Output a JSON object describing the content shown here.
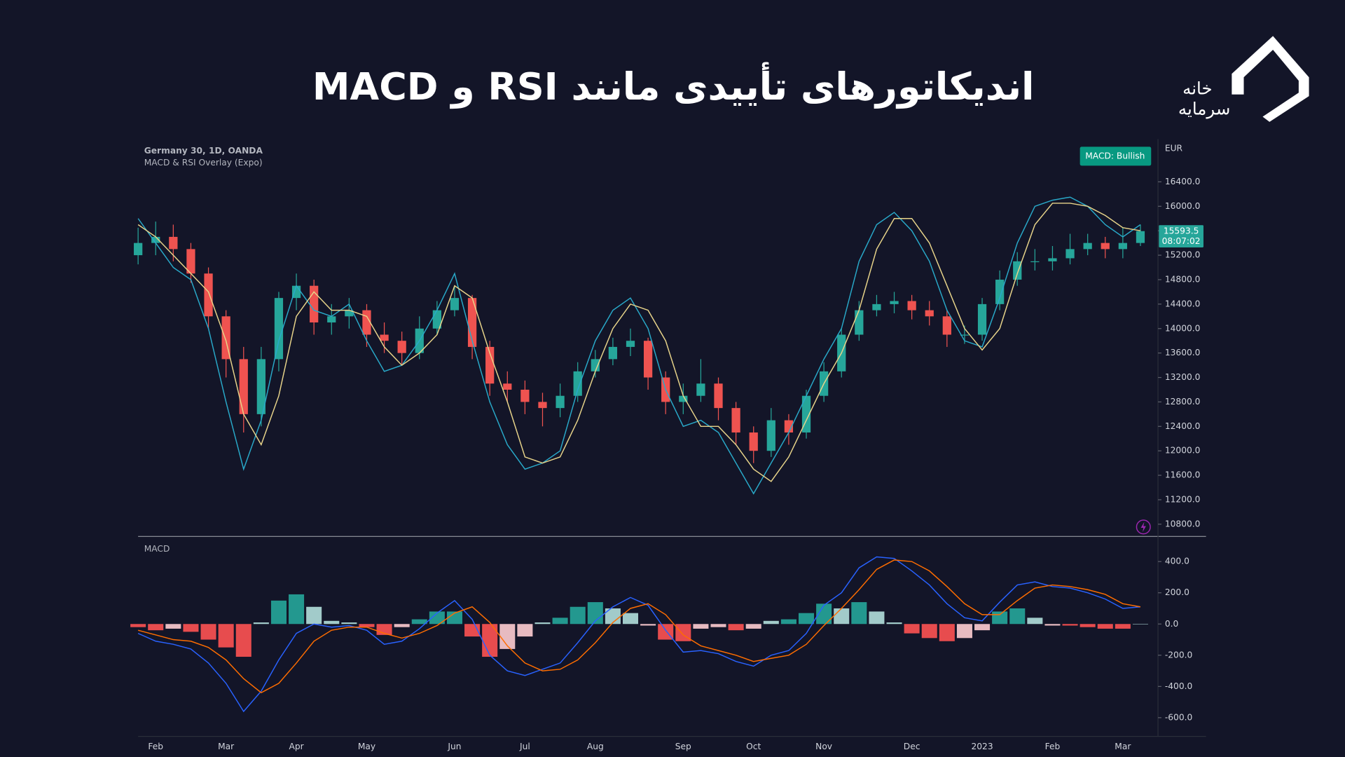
{
  "header": {
    "title": "اندیکاتورهای تأییدی مانند RSI و MACD",
    "logo_top": "خانه",
    "logo_bottom": "سرمایه"
  },
  "chart_data": [
    {
      "type": "candlestick",
      "title": "Germany 30, 1D, OANDA",
      "subtitle": "MACD & RSI Overlay (Expo)",
      "badge": "MACD: Bullish",
      "axis_label": "EUR",
      "last_price": 15593.5,
      "countdown": "08:07:02",
      "up_color": "#26a69a",
      "down_color": "#ef5350",
      "categories": [
        null,
        "Feb",
        null,
        null,
        null,
        "Mar",
        null,
        null,
        null,
        "Apr",
        null,
        null,
        null,
        "May",
        null,
        null,
        null,
        null,
        "Jun",
        null,
        null,
        null,
        "Jul",
        null,
        null,
        null,
        "Aug",
        null,
        null,
        null,
        null,
        "Sep",
        null,
        null,
        null,
        "Oct",
        null,
        null,
        null,
        "Nov",
        null,
        null,
        null,
        null,
        "Dec",
        null,
        null,
        null,
        "2023",
        null,
        null,
        null,
        "Feb",
        null,
        null,
        null,
        "Mar",
        null
      ],
      "open": [
        15200,
        15400,
        15500,
        15300,
        14900,
        14200,
        13500,
        12600,
        13500,
        14500,
        14700,
        14100,
        14200,
        14300,
        13900,
        13800,
        13600,
        14000,
        14300,
        14500,
        13700,
        13100,
        13000,
        12800,
        12700,
        12900,
        13300,
        13500,
        13700,
        13800,
        13200,
        12800,
        12900,
        13100,
        12700,
        12300,
        12000,
        12500,
        12300,
        12900,
        13300,
        13900,
        14300,
        14400,
        14450,
        14300,
        14200,
        13900,
        13900,
        14400,
        14800,
        15100,
        15100,
        15150,
        15300,
        15400,
        15300,
        15400
      ],
      "high": [
        15650,
        15750,
        15700,
        15400,
        15000,
        14300,
        13700,
        13700,
        14600,
        14900,
        14800,
        14400,
        14500,
        14400,
        14100,
        13950,
        14200,
        14450,
        14700,
        14550,
        13800,
        13300,
        13150,
        12950,
        13100,
        13450,
        13650,
        13850,
        14000,
        13850,
        13300,
        13100,
        13500,
        13200,
        12800,
        12400,
        12700,
        12600,
        13000,
        13450,
        14000,
        14450,
        14550,
        14600,
        14550,
        14450,
        14300,
        14050,
        14500,
        14950,
        15250,
        15300,
        15350,
        15550,
        15550,
        15500,
        15650,
        15700
      ],
      "low": [
        15050,
        15200,
        15100,
        14750,
        14000,
        13200,
        12300,
        12400,
        13300,
        14300,
        13900,
        13900,
        14000,
        13700,
        13600,
        13400,
        13500,
        13900,
        14200,
        13500,
        12900,
        12800,
        12600,
        12400,
        12550,
        12800,
        13200,
        13400,
        13550,
        13000,
        12600,
        12600,
        12800,
        12500,
        12100,
        11800,
        11900,
        12100,
        12200,
        12800,
        13200,
        13800,
        14200,
        14250,
        14150,
        14050,
        13700,
        13750,
        13800,
        14300,
        14700,
        14950,
        14950,
        15050,
        15200,
        15150,
        15150,
        15350
      ],
      "close": [
        15400,
        15500,
        15300,
        14900,
        14200,
        13500,
        12600,
        13500,
        14500,
        14700,
        14100,
        14200,
        14300,
        13900,
        13800,
        13600,
        14000,
        14300,
        14500,
        13700,
        13100,
        13000,
        12800,
        12700,
        12900,
        13300,
        13500,
        13700,
        13800,
        13200,
        12800,
        12900,
        13100,
        12700,
        12300,
        12000,
        12500,
        12300,
        12900,
        13300,
        13900,
        14300,
        14400,
        14450,
        14300,
        14200,
        13900,
        13900,
        14400,
        14800,
        15100,
        15100,
        15150,
        15300,
        15400,
        15300,
        15400,
        15594
      ],
      "series": [
        {
          "color": "#29a9c9",
          "values": [
            15800,
            15400,
            15000,
            14800,
            14000,
            12800,
            11700,
            12500,
            13800,
            14700,
            14300,
            14200,
            14400,
            13800,
            13300,
            13400,
            13800,
            14300,
            14900,
            13800,
            12800,
            12100,
            11700,
            11800,
            12000,
            13000,
            13800,
            14300,
            14500,
            14000,
            13000,
            12400,
            12500,
            12300,
            11800,
            11300,
            11800,
            12300,
            12900,
            13500,
            14000,
            15100,
            15700,
            15900,
            15600,
            15100,
            14300,
            13800,
            13700,
            14500,
            15400,
            16000,
            16100,
            16150,
            16000,
            15700,
            15500,
            15700
          ]
        },
        {
          "color": "#e8d48a",
          "values": [
            15700,
            15500,
            15200,
            14900,
            14600,
            13800,
            12600,
            12100,
            12900,
            14200,
            14600,
            14300,
            14300,
            14200,
            13700,
            13400,
            13600,
            13900,
            14700,
            14500,
            13600,
            12800,
            11900,
            11800,
            11900,
            12500,
            13300,
            14000,
            14400,
            14300,
            13800,
            12900,
            12400,
            12400,
            12100,
            11700,
            11500,
            11900,
            12500,
            13100,
            13600,
            14300,
            15300,
            15800,
            15800,
            15400,
            14700,
            14000,
            13650,
            14000,
            14900,
            15700,
            16050,
            16050,
            16000,
            15850,
            15650,
            15600
          ]
        }
      ],
      "ylim": [
        10600,
        17100
      ],
      "yticks": [
        {
          "value": 10800,
          "label": "10800.0"
        },
        {
          "value": 11200,
          "label": "11200.0"
        },
        {
          "value": 11600,
          "label": "11600.0"
        },
        {
          "value": 12000,
          "label": "12000.0"
        },
        {
          "value": 12400,
          "label": "12400.0"
        },
        {
          "value": 12800,
          "label": "12800.0"
        },
        {
          "value": 13200,
          "label": "13200.0"
        },
        {
          "value": 13600,
          "label": "13600.0"
        },
        {
          "value": 14000,
          "label": "14000.0"
        },
        {
          "value": 14400,
          "label": "14400.0"
        },
        {
          "value": 14800,
          "label": "14800.0"
        },
        {
          "value": 15200,
          "label": "15200.0"
        },
        {
          "value": 15600,
          "label": "15600.0"
        },
        {
          "value": 16000,
          "label": "16000.0"
        },
        {
          "value": 16400,
          "label": "16400.0"
        }
      ]
    },
    {
      "type": "macd",
      "title": "MACD",
      "up_colors": [
        "#26a69a",
        "#b2dfdb"
      ],
      "down_colors": [
        "#ff5252",
        "#ffcdd2"
      ],
      "histogram": [
        -20,
        -40,
        -30,
        -50,
        -100,
        -150,
        -210,
        10,
        150,
        190,
        110,
        20,
        10,
        -20,
        -70,
        -20,
        30,
        80,
        80,
        -80,
        -210,
        -160,
        -80,
        10,
        40,
        110,
        140,
        100,
        70,
        -10,
        -100,
        -110,
        -30,
        -20,
        -40,
        -30,
        20,
        30,
        70,
        130,
        100,
        140,
        80,
        10,
        -60,
        -90,
        -110,
        -90,
        -40,
        80,
        100,
        40,
        -10,
        -10,
        -20,
        -30,
        -30,
        0
      ],
      "series": [
        {
          "color": "#2962ff",
          "values": [
            -60,
            -110,
            -130,
            -160,
            -250,
            -380,
            -560,
            -430,
            -230,
            -60,
            0,
            -20,
            -10,
            -40,
            -130,
            -110,
            -30,
            70,
            150,
            30,
            -200,
            -300,
            -330,
            -290,
            -250,
            -120,
            20,
            110,
            170,
            120,
            -40,
            -180,
            -170,
            -190,
            -240,
            -270,
            -200,
            -170,
            -60,
            120,
            200,
            360,
            430,
            420,
            340,
            250,
            130,
            40,
            20,
            140,
            250,
            270,
            240,
            230,
            200,
            160,
            100,
            110
          ]
        },
        {
          "color": "#ff6d00",
          "values": [
            -40,
            -70,
            -100,
            -110,
            -150,
            -230,
            -350,
            -440,
            -380,
            -250,
            -110,
            -40,
            -20,
            -20,
            -60,
            -90,
            -60,
            -10,
            70,
            110,
            10,
            -140,
            -250,
            -300,
            -290,
            -230,
            -120,
            10,
            100,
            130,
            60,
            -70,
            -140,
            -170,
            -200,
            -240,
            -220,
            -200,
            -130,
            -10,
            100,
            220,
            350,
            410,
            400,
            340,
            240,
            130,
            60,
            60,
            150,
            230,
            250,
            240,
            220,
            190,
            130,
            110
          ]
        }
      ],
      "ylim": [
        -720,
        550
      ],
      "yticks": [
        {
          "value": -600,
          "label": "-600.0"
        },
        {
          "value": -400,
          "label": "-400.0"
        },
        {
          "value": -200,
          "label": "-200.0"
        },
        {
          "value": 0,
          "label": "0.0"
        },
        {
          "value": 200,
          "label": "200.0"
        },
        {
          "value": 400,
          "label": "400.0"
        }
      ]
    }
  ]
}
